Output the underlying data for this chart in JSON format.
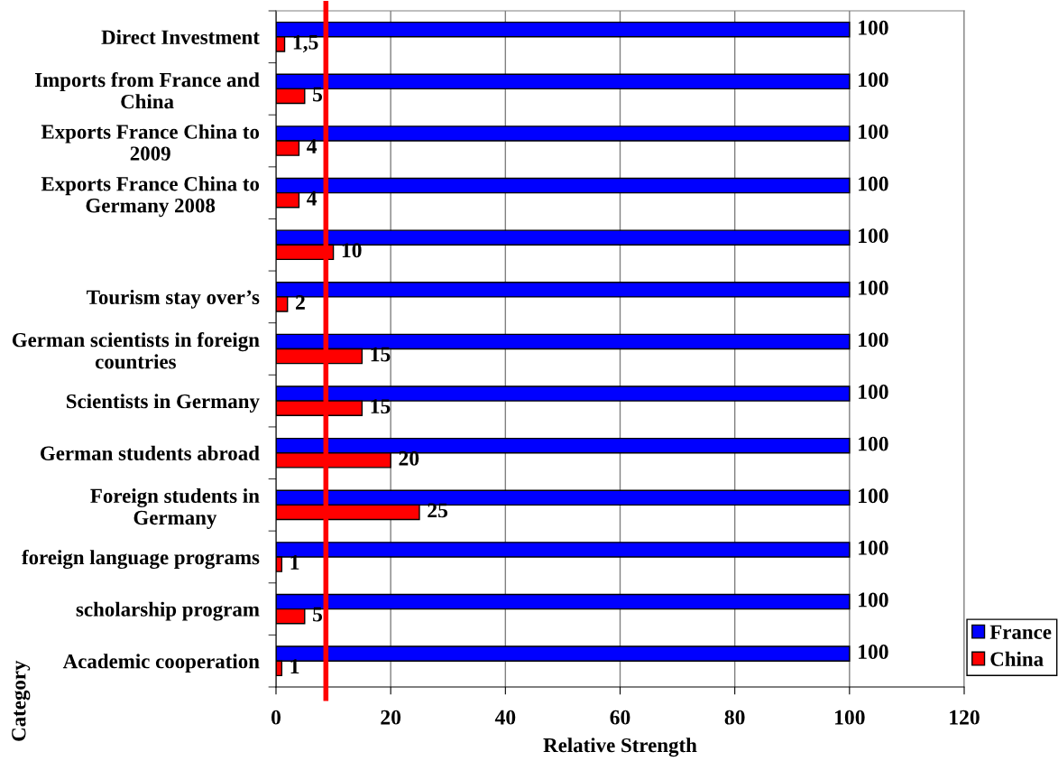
{
  "chart_data": {
    "type": "bar",
    "orientation": "horizontal",
    "xlabel": "Relative Strength",
    "ylabel": "Category",
    "categories": [
      "Direct Investment",
      "Imports from France and\nChina",
      "Exports France China to\n2009",
      "Exports France China to\nGermany 2008",
      null,
      "Tourism stay over’s",
      "German scientists in foreign\ncountries",
      "Scientists in Germany",
      "German students abroad",
      "Foreign students in\nGermany",
      "foreign language programs",
      "scholarship program",
      "Academic cooperation"
    ],
    "series": [
      {
        "name": "France",
        "color": "#0000ff",
        "values": [
          100,
          100,
          100,
          100,
          100,
          100,
          100,
          100,
          100,
          100,
          100,
          100,
          100
        ],
        "value_labels": [
          "100",
          "100",
          "100",
          "100",
          "100",
          "100",
          "100",
          "100",
          "100",
          "100",
          "100",
          "100",
          "100"
        ]
      },
      {
        "name": "China",
        "color": "#ff0000",
        "values": [
          1.5,
          5,
          4,
          4,
          10,
          2,
          15,
          15,
          20,
          25,
          1,
          5,
          1
        ],
        "value_labels": [
          "1,5",
          "5",
          "4",
          "4",
          "10",
          "2",
          "15",
          "15",
          "20",
          "25",
          "1",
          "5",
          "1"
        ]
      }
    ],
    "xlim": [
      0,
      120
    ],
    "xticks": [
      0,
      20,
      40,
      60,
      80,
      100,
      120
    ],
    "grid": "x",
    "legend": "bottom right",
    "ref_lines": [
      {
        "axis": "x",
        "value": 8.7,
        "color": "#ff0000"
      }
    ]
  }
}
